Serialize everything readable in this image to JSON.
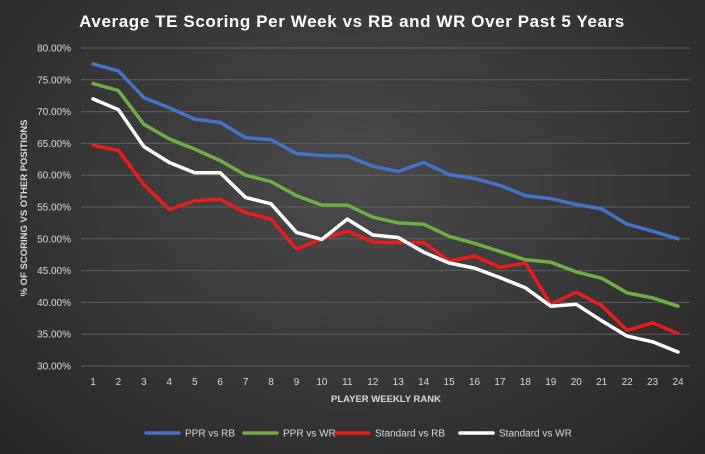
{
  "chart_data": {
    "type": "line",
    "title": "Average TE Scoring Per Week vs RB and WR Over Past 5 Years",
    "xlabel": "PLAYER WEEKLY RANK",
    "ylabel": "% OF SCORING VS OTHER POSITIONS",
    "x": [
      1,
      2,
      3,
      4,
      5,
      6,
      7,
      8,
      9,
      10,
      11,
      12,
      13,
      14,
      15,
      16,
      17,
      18,
      19,
      20,
      21,
      22,
      23,
      24
    ],
    "ylim": [
      0.3,
      0.8
    ],
    "yticks": [
      "80.00%",
      "75.00%",
      "70.00%",
      "65.00%",
      "60.00%",
      "55.00%",
      "50.00%",
      "45.00%",
      "40.00%",
      "35.00%",
      "30.00%"
    ],
    "ytick_values": [
      0.8,
      0.75,
      0.7,
      0.65,
      0.6,
      0.55,
      0.5,
      0.45,
      0.4,
      0.35,
      0.3
    ],
    "grid": true,
    "legend_position": "bottom",
    "series": [
      {
        "name": "PPR vs RB",
        "color": "#4472c4",
        "values": [
          0.775,
          0.764,
          0.722,
          0.706,
          0.688,
          0.683,
          0.659,
          0.656,
          0.634,
          0.631,
          0.63,
          0.614,
          0.606,
          0.62,
          0.601,
          0.595,
          0.584,
          0.568,
          0.563,
          0.554,
          0.547,
          0.523,
          0.512,
          0.5
        ]
      },
      {
        "name": "PPR vs WR",
        "color": "#70ad47",
        "values": [
          0.744,
          0.733,
          0.68,
          0.657,
          0.641,
          0.623,
          0.6,
          0.59,
          0.568,
          0.553,
          0.553,
          0.534,
          0.525,
          0.523,
          0.504,
          0.493,
          0.48,
          0.467,
          0.463,
          0.448,
          0.438,
          0.415,
          0.407,
          0.394
        ]
      },
      {
        "name": "Standard vs RB",
        "color": "#e81c1c",
        "values": [
          0.647,
          0.639,
          0.585,
          0.546,
          0.56,
          0.562,
          0.541,
          0.531,
          0.484,
          0.5,
          0.512,
          0.495,
          0.494,
          0.494,
          0.465,
          0.473,
          0.455,
          0.462,
          0.397,
          0.416,
          0.395,
          0.356,
          0.368,
          0.351
        ]
      },
      {
        "name": "Standard vs WR",
        "color": "#ffffff",
        "values": [
          0.72,
          0.703,
          0.645,
          0.62,
          0.604,
          0.604,
          0.565,
          0.555,
          0.51,
          0.499,
          0.531,
          0.506,
          0.502,
          0.479,
          0.462,
          0.454,
          0.439,
          0.423,
          0.394,
          0.397,
          0.371,
          0.347,
          0.338,
          0.322
        ]
      }
    ]
  }
}
